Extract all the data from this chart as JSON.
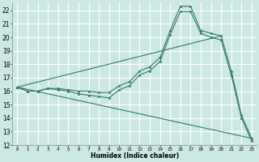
{
  "xlabel": "Humidex (Indice chaleur)",
  "background_color": "#cce8e5",
  "grid_color": "#ffffff",
  "line_color": "#2d7a6a",
  "xlim": [
    -0.5,
    23.5
  ],
  "ylim": [
    12,
    22.6
  ],
  "xticks": [
    0,
    1,
    2,
    3,
    4,
    5,
    6,
    7,
    8,
    9,
    10,
    11,
    12,
    13,
    14,
    15,
    16,
    17,
    18,
    19,
    20,
    21,
    22,
    23
  ],
  "yticks": [
    12,
    13,
    14,
    15,
    16,
    17,
    18,
    19,
    20,
    21,
    22
  ],
  "line1_x": [
    0,
    1,
    2,
    3,
    4,
    5,
    6,
    7,
    8,
    9,
    10,
    11,
    12,
    13,
    14,
    15,
    16,
    17,
    18,
    19,
    20,
    21,
    22,
    23
  ],
  "line1_y": [
    16.3,
    16.0,
    16.0,
    16.2,
    16.2,
    16.1,
    16.0,
    16.0,
    15.9,
    15.9,
    16.4,
    16.7,
    17.5,
    17.8,
    18.5,
    20.5,
    22.3,
    22.3,
    20.5,
    20.3,
    20.1,
    17.5,
    14.2,
    12.5
  ],
  "line2_x": [
    0,
    1,
    2,
    3,
    4,
    5,
    6,
    7,
    8,
    9,
    10,
    11,
    12,
    13,
    14,
    15,
    16,
    17,
    18,
    19,
    20,
    21,
    22,
    23
  ],
  "line2_y": [
    16.3,
    16.0,
    16.0,
    16.2,
    16.1,
    16.0,
    15.8,
    15.7,
    15.6,
    15.5,
    16.1,
    16.4,
    17.2,
    17.5,
    18.2,
    20.2,
    21.9,
    21.9,
    20.3,
    20.0,
    19.8,
    17.2,
    14.0,
    12.3
  ],
  "line3_x": [
    0,
    23
  ],
  "line3_y": [
    16.3,
    12.5
  ],
  "line4_x": [
    0,
    20
  ],
  "line4_y": [
    16.3,
    20.1
  ]
}
